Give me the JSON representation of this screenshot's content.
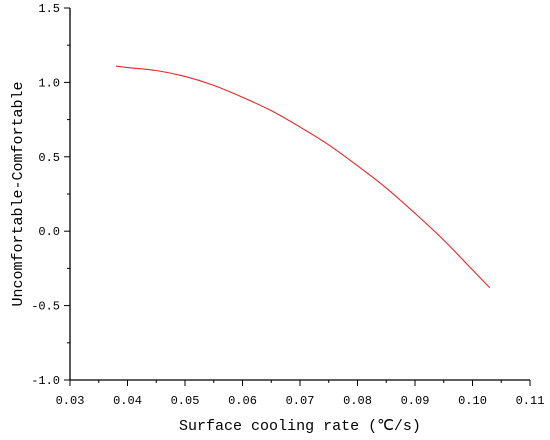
{
  "chart_data": {
    "type": "line",
    "title": "",
    "xlabel": "Surface cooling rate (℃/s)",
    "ylabel": "Uncomfortable-Comfortable",
    "xlim": [
      0.03,
      0.11
    ],
    "ylim": [
      -1.0,
      1.5
    ],
    "x_ticks": [
      "0.03",
      "0.04",
      "0.05",
      "0.06",
      "0.07",
      "0.08",
      "0.09",
      "0.10",
      "0.11"
    ],
    "y_ticks": [
      "1.5",
      "1.0",
      "0.5",
      "0.0",
      "-0.5",
      "-1.0"
    ],
    "grid": false,
    "series": [
      {
        "color": "#e8262b",
        "x": [
          0.038,
          0.04,
          0.045,
          0.05,
          0.055,
          0.06,
          0.065,
          0.07,
          0.075,
          0.08,
          0.085,
          0.09,
          0.095,
          0.1,
          0.103
        ],
        "y": [
          1.11,
          1.1,
          1.08,
          1.04,
          0.98,
          0.9,
          0.81,
          0.7,
          0.58,
          0.44,
          0.29,
          0.12,
          -0.06,
          -0.26,
          -0.38
        ]
      }
    ]
  }
}
